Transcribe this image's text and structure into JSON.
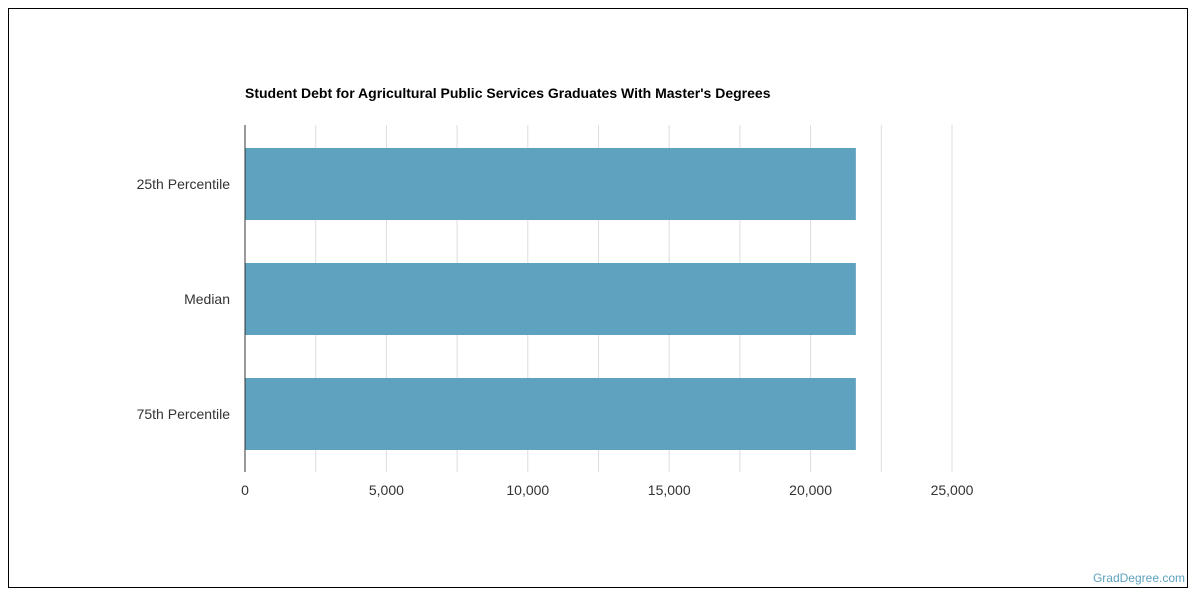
{
  "chart_data": {
    "type": "bar",
    "orientation": "horizontal",
    "title": "Student Debt for Agricultural Public Services Graduates With Master's Degrees",
    "categories": [
      "25th Percentile",
      "Median",
      "75th Percentile"
    ],
    "values": [
      21600,
      21600,
      21600
    ],
    "xlim": [
      0,
      25000
    ],
    "x_ticks": [
      0,
      5000,
      10000,
      15000,
      20000,
      25000
    ],
    "x_tick_labels": [
      "0",
      "5,000",
      "10,000",
      "15,000",
      "20,000",
      "25,000"
    ],
    "xlabel": "",
    "ylabel": "",
    "grid": true,
    "bar_color": "#5ea2bf"
  },
  "watermark": "GradDegree.com"
}
